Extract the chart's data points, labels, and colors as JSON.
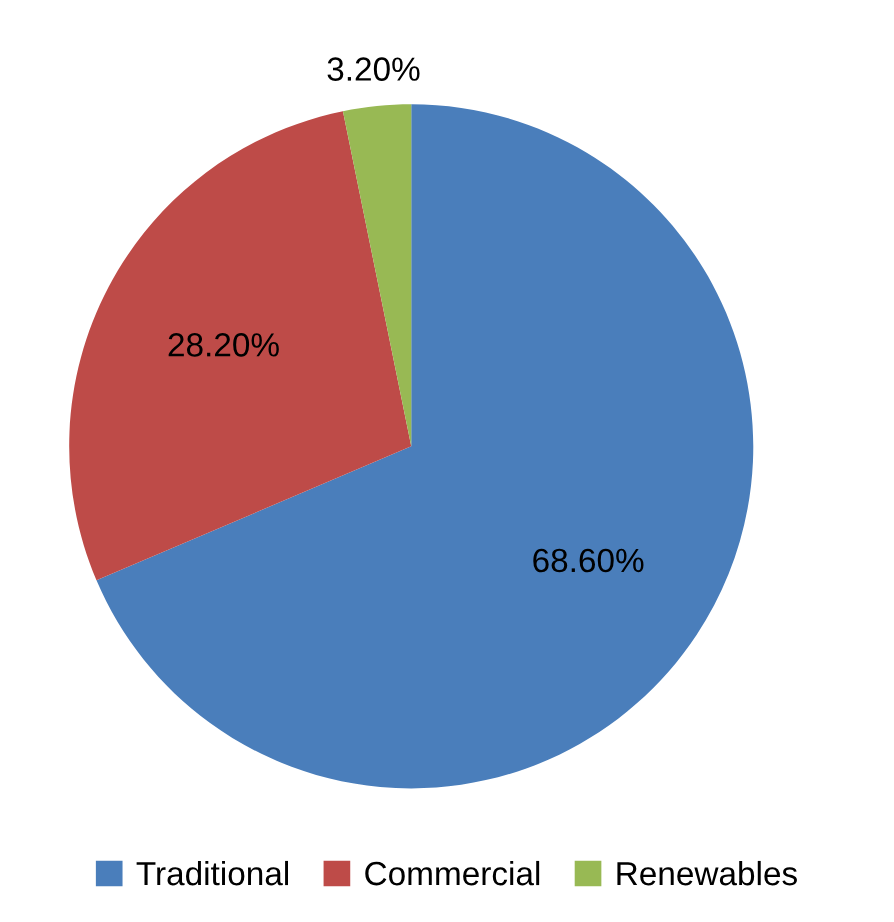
{
  "chart_data": {
    "type": "pie",
    "categories": [
      "Traditional",
      "Commercial",
      "Renewables"
    ],
    "values": [
      68.6,
      28.2,
      3.2
    ],
    "colors": [
      "#4a7ebb",
      "#be4b48",
      "#98b954"
    ],
    "value_labels": [
      "68.60%",
      "28.20%",
      "3.20%"
    ],
    "legend": "bottom"
  }
}
